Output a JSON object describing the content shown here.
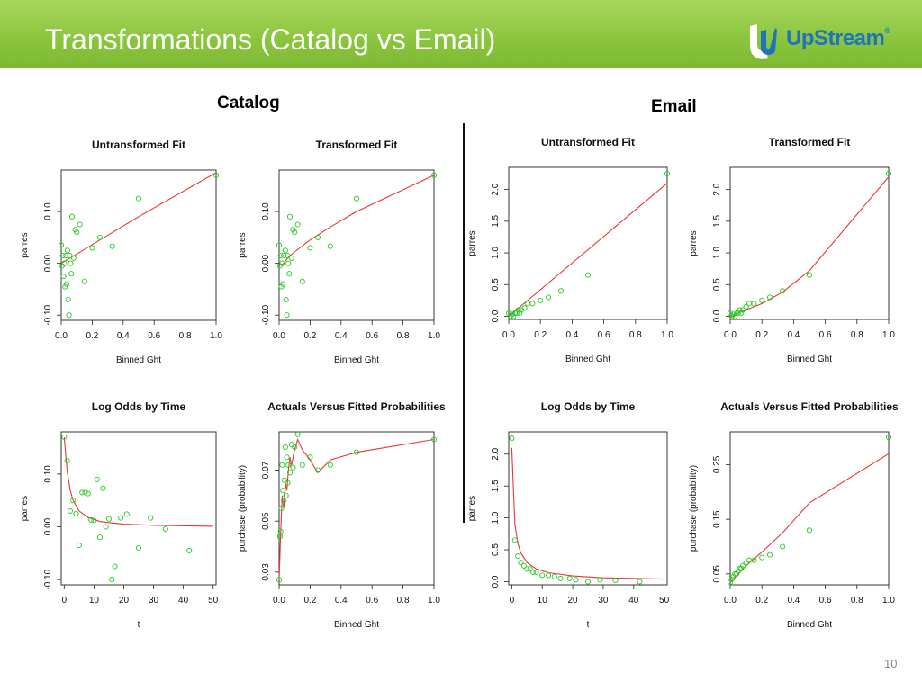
{
  "slide": {
    "title": "Transformations (Catalog vs Email)",
    "logo_text": "UpStream",
    "logo_tm": "®",
    "catalog_label": "Catalog",
    "email_label": "Email",
    "page_number": "10"
  },
  "colors": {
    "header": "#8cc63f",
    "points": "#22cc22",
    "fit": "#ee3333",
    "logo_blue": "#1e73be"
  },
  "chart_data": [
    {
      "group": "Catalog",
      "type": "scatter",
      "title": "Untransformed Fit",
      "xlabel": "Binned Ght",
      "ylabel": "parres",
      "xlim": [
        0,
        1
      ],
      "ylim": [
        -0.11,
        0.18
      ],
      "xticks": [
        "0.0",
        "0.2",
        "0.4",
        "0.6",
        "0.8",
        "1.0"
      ],
      "xtick_values": [
        0,
        0.2,
        0.4,
        0.6,
        0.8,
        1.0
      ],
      "yticks": [
        "-0.10",
        "0.00",
        "0.10"
      ],
      "ytick_values": [
        -0.1,
        0,
        0.1
      ],
      "points": [
        [
          0.0,
          0.035
        ],
        [
          0.005,
          -0.005
        ],
        [
          0.01,
          0.015
        ],
        [
          0.015,
          -0.025
        ],
        [
          0.02,
          0.0
        ],
        [
          0.025,
          -0.045
        ],
        [
          0.03,
          0.015
        ],
        [
          0.035,
          -0.04
        ],
        [
          0.04,
          0.025
        ],
        [
          0.045,
          -0.07
        ],
        [
          0.05,
          -0.1
        ],
        [
          0.055,
          0.015
        ],
        [
          0.06,
          0.0
        ],
        [
          0.065,
          -0.02
        ],
        [
          0.07,
          0.09
        ],
        [
          0.08,
          0.01
        ],
        [
          0.09,
          0.065
        ],
        [
          0.1,
          0.06
        ],
        [
          0.12,
          0.075
        ],
        [
          0.15,
          -0.035
        ],
        [
          0.2,
          0.03
        ],
        [
          0.25,
          0.05
        ],
        [
          0.33,
          0.033
        ],
        [
          0.5,
          0.125
        ],
        [
          1.0,
          0.17
        ]
      ],
      "fit": [
        [
          0.0,
          0.0
        ],
        [
          0.1,
          0.018
        ],
        [
          0.25,
          0.045
        ],
        [
          0.5,
          0.09
        ],
        [
          1.0,
          0.175
        ]
      ]
    },
    {
      "group": "Catalog",
      "type": "scatter",
      "title": "Transformed Fit",
      "xlabel": "Binned Ght",
      "ylabel": "parres",
      "xlim": [
        0,
        1
      ],
      "ylim": [
        -0.11,
        0.18
      ],
      "xticks": [
        "0.0",
        "0.2",
        "0.4",
        "0.6",
        "0.8",
        "1.0"
      ],
      "xtick_values": [
        0,
        0.2,
        0.4,
        0.6,
        0.8,
        1.0
      ],
      "yticks": [
        "-0.10",
        "0.00",
        "0.10"
      ],
      "ytick_values": [
        -0.1,
        0,
        0.1
      ],
      "points": [
        [
          0.0,
          0.035
        ],
        [
          0.005,
          -0.005
        ],
        [
          0.01,
          0.015
        ],
        [
          0.015,
          -0.045
        ],
        [
          0.02,
          0.0
        ],
        [
          0.025,
          -0.04
        ],
        [
          0.03,
          0.015
        ],
        [
          0.04,
          0.025
        ],
        [
          0.045,
          -0.07
        ],
        [
          0.05,
          -0.1
        ],
        [
          0.055,
          0.015
        ],
        [
          0.06,
          0.0
        ],
        [
          0.065,
          -0.02
        ],
        [
          0.07,
          0.09
        ],
        [
          0.08,
          0.01
        ],
        [
          0.09,
          0.065
        ],
        [
          0.1,
          0.06
        ],
        [
          0.12,
          0.075
        ],
        [
          0.15,
          -0.035
        ],
        [
          0.2,
          0.03
        ],
        [
          0.25,
          0.05
        ],
        [
          0.33,
          0.033
        ],
        [
          0.5,
          0.125
        ],
        [
          1.0,
          0.17
        ]
      ],
      "fit": [
        [
          0.0,
          -0.005
        ],
        [
          0.03,
          0.0
        ],
        [
          0.06,
          0.012
        ],
        [
          0.1,
          0.022
        ],
        [
          0.2,
          0.045
        ],
        [
          0.33,
          0.07
        ],
        [
          0.5,
          0.1
        ],
        [
          1.0,
          0.17
        ]
      ]
    },
    {
      "group": "Catalog",
      "type": "scatter",
      "title": "Log Odds by Time",
      "xlabel": "t",
      "ylabel": "parres",
      "xlim": [
        -1,
        51
      ],
      "ylim": [
        -0.11,
        0.18
      ],
      "xticks": [
        "0",
        "10",
        "20",
        "30",
        "40",
        "50"
      ],
      "xtick_values": [
        0,
        10,
        20,
        30,
        40,
        50
      ],
      "yticks": [
        "-0.10",
        "0.00",
        "0.10"
      ],
      "ytick_values": [
        -0.1,
        0,
        0.1
      ],
      "points": [
        [
          0,
          0.17
        ],
        [
          1,
          0.125
        ],
        [
          2,
          0.03
        ],
        [
          3,
          0.05
        ],
        [
          4,
          0.025
        ],
        [
          5,
          -0.035
        ],
        [
          6,
          0.065
        ],
        [
          7,
          0.065
        ],
        [
          8,
          0.063
        ],
        [
          9,
          0.013
        ],
        [
          10,
          0.012
        ],
        [
          11,
          0.09
        ],
        [
          12,
          -0.02
        ],
        [
          13,
          0.073
        ],
        [
          14,
          0.0
        ],
        [
          15,
          0.015
        ],
        [
          16,
          -0.1
        ],
        [
          17,
          -0.075
        ],
        [
          19,
          0.017
        ],
        [
          21,
          0.024
        ],
        [
          25,
          -0.04
        ],
        [
          29,
          0.017
        ],
        [
          34,
          -0.004
        ],
        [
          42,
          -0.045
        ]
      ],
      "fit": [
        [
          0,
          0.17
        ],
        [
          1,
          0.105
        ],
        [
          2,
          0.07
        ],
        [
          3,
          0.05
        ],
        [
          5,
          0.03
        ],
        [
          8,
          0.018
        ],
        [
          12,
          0.01
        ],
        [
          20,
          0.005
        ],
        [
          30,
          0.003
        ],
        [
          50,
          0.001
        ]
      ]
    },
    {
      "group": "Catalog",
      "type": "scatter",
      "title": "Actuals Versus Fitted Probabilities",
      "xlabel": "Binned Ght",
      "ylabel": "purchase (probability)",
      "xlim": [
        0,
        1
      ],
      "ylim": [
        0.025,
        0.085
      ],
      "xticks": [
        "0.0",
        "0.2",
        "0.4",
        "0.6",
        "0.8",
        "1.0"
      ],
      "xtick_values": [
        0,
        0.2,
        0.4,
        0.6,
        0.8,
        1.0
      ],
      "yticks": [
        "0.03",
        "0.05",
        "0.07"
      ],
      "ytick_values": [
        0.03,
        0.05,
        0.07
      ],
      "points": [
        [
          0.0,
          0.027
        ],
        [
          0.005,
          0.044
        ],
        [
          0.01,
          0.046
        ],
        [
          0.015,
          0.055
        ],
        [
          0.02,
          0.072
        ],
        [
          0.025,
          0.062
        ],
        [
          0.03,
          0.058
        ],
        [
          0.035,
          0.066
        ],
        [
          0.04,
          0.079
        ],
        [
          0.045,
          0.06
        ],
        [
          0.05,
          0.075
        ],
        [
          0.055,
          0.065
        ],
        [
          0.06,
          0.072
        ],
        [
          0.07,
          0.069
        ],
        [
          0.08,
          0.08
        ],
        [
          0.09,
          0.071
        ],
        [
          0.1,
          0.079
        ],
        [
          0.12,
          0.084
        ],
        [
          0.15,
          0.072
        ],
        [
          0.2,
          0.075
        ],
        [
          0.25,
          0.07
        ],
        [
          0.33,
          0.072
        ],
        [
          0.5,
          0.077
        ],
        [
          1.0,
          0.082
        ]
      ],
      "fit": [
        [
          0.0,
          0.027
        ],
        [
          0.01,
          0.045
        ],
        [
          0.02,
          0.06
        ],
        [
          0.03,
          0.055
        ],
        [
          0.04,
          0.065
        ],
        [
          0.05,
          0.062
        ],
        [
          0.06,
          0.07
        ],
        [
          0.07,
          0.075
        ],
        [
          0.08,
          0.072
        ],
        [
          0.1,
          0.078
        ],
        [
          0.12,
          0.082
        ],
        [
          0.15,
          0.078
        ],
        [
          0.2,
          0.074
        ],
        [
          0.25,
          0.069
        ],
        [
          0.33,
          0.074
        ],
        [
          0.5,
          0.077
        ],
        [
          1.0,
          0.082
        ]
      ]
    },
    {
      "group": "Email",
      "type": "scatter",
      "title": "Untransformed Fit",
      "xlabel": "Binned Ght",
      "ylabel": "parres",
      "xlim": [
        0,
        1
      ],
      "ylim": [
        -0.05,
        2.35
      ],
      "xticks": [
        "0.0",
        "0.2",
        "0.4",
        "0.6",
        "0.8",
        "1.0"
      ],
      "xtick_values": [
        0,
        0.2,
        0.4,
        0.6,
        0.8,
        1.0
      ],
      "yticks": [
        "0.0",
        "0.5",
        "1.0",
        "1.5",
        "2.0"
      ],
      "ytick_values": [
        0,
        0.5,
        1.0,
        1.5,
        2.0
      ],
      "points": [
        [
          0.0,
          0.05
        ],
        [
          0.01,
          0.0
        ],
        [
          0.02,
          0.03
        ],
        [
          0.03,
          0.0
        ],
        [
          0.04,
          0.05
        ],
        [
          0.05,
          0.05
        ],
        [
          0.06,
          0.1
        ],
        [
          0.07,
          0.05
        ],
        [
          0.08,
          0.1
        ],
        [
          0.1,
          0.13
        ],
        [
          0.12,
          0.2
        ],
        [
          0.15,
          0.2
        ],
        [
          0.2,
          0.25
        ],
        [
          0.25,
          0.3
        ],
        [
          0.33,
          0.4
        ],
        [
          0.5,
          0.65
        ],
        [
          1.0,
          2.25
        ]
      ],
      "fit": [
        [
          0.0,
          0.0
        ],
        [
          1.0,
          2.1
        ]
      ]
    },
    {
      "group": "Email",
      "type": "scatter",
      "title": "Transformed Fit",
      "xlabel": "Binned Ght",
      "ylabel": "parres",
      "xlim": [
        0,
        1
      ],
      "ylim": [
        -0.05,
        2.35
      ],
      "xticks": [
        "0.0",
        "0.2",
        "0.4",
        "0.6",
        "0.8",
        "1.0"
      ],
      "xtick_values": [
        0,
        0.2,
        0.4,
        0.6,
        0.8,
        1.0
      ],
      "yticks": [
        "0.0",
        "0.5",
        "1.0",
        "1.5",
        "2.0"
      ],
      "ytick_values": [
        0,
        0.5,
        1.0,
        1.5,
        2.0
      ],
      "points": [
        [
          0.0,
          0.05
        ],
        [
          0.01,
          0.0
        ],
        [
          0.02,
          0.03
        ],
        [
          0.03,
          0.0
        ],
        [
          0.04,
          0.05
        ],
        [
          0.05,
          0.05
        ],
        [
          0.06,
          0.1
        ],
        [
          0.07,
          0.05
        ],
        [
          0.08,
          0.1
        ],
        [
          0.1,
          0.15
        ],
        [
          0.12,
          0.2
        ],
        [
          0.15,
          0.2
        ],
        [
          0.2,
          0.25
        ],
        [
          0.25,
          0.3
        ],
        [
          0.33,
          0.4
        ],
        [
          0.5,
          0.65
        ],
        [
          1.0,
          2.25
        ]
      ],
      "fit": [
        [
          0.0,
          -0.02
        ],
        [
          0.05,
          0.05
        ],
        [
          0.1,
          0.1
        ],
        [
          0.2,
          0.2
        ],
        [
          0.33,
          0.38
        ],
        [
          0.5,
          0.72
        ],
        [
          1.0,
          2.2
        ]
      ]
    },
    {
      "group": "Email",
      "type": "scatter",
      "title": "Log Odds by Time",
      "xlabel": "t",
      "ylabel": "parres",
      "xlim": [
        -1,
        51
      ],
      "ylim": [
        -0.05,
        2.35
      ],
      "xticks": [
        "0",
        "10",
        "20",
        "30",
        "40",
        "50"
      ],
      "xtick_values": [
        0,
        10,
        20,
        30,
        40,
        50
      ],
      "yticks": [
        "0.0",
        "0.5",
        "1.0",
        "1.5",
        "2.0"
      ],
      "ytick_values": [
        0,
        0.5,
        1.0,
        1.5,
        2.0
      ],
      "points": [
        [
          0,
          2.25
        ],
        [
          1,
          0.65
        ],
        [
          2,
          0.4
        ],
        [
          3,
          0.3
        ],
        [
          4,
          0.25
        ],
        [
          5,
          0.2
        ],
        [
          6,
          0.2
        ],
        [
          7,
          0.15
        ],
        [
          8,
          0.15
        ],
        [
          10,
          0.1
        ],
        [
          12,
          0.1
        ],
        [
          14,
          0.08
        ],
        [
          16,
          0.05
        ],
        [
          19,
          0.05
        ],
        [
          21,
          0.03
        ],
        [
          25,
          0.0
        ],
        [
          29,
          0.03
        ],
        [
          34,
          0.02
        ],
        [
          42,
          0.0
        ]
      ],
      "fit": [
        [
          0,
          2.1
        ],
        [
          1,
          0.9
        ],
        [
          2,
          0.6
        ],
        [
          3,
          0.45
        ],
        [
          5,
          0.3
        ],
        [
          8,
          0.2
        ],
        [
          12,
          0.14
        ],
        [
          20,
          0.09
        ],
        [
          30,
          0.06
        ],
        [
          50,
          0.04
        ]
      ]
    },
    {
      "group": "Email",
      "type": "scatter",
      "title": "Actuals Versus Fitted Probabilities",
      "xlabel": "Binned Ght",
      "ylabel": "purchase (probability)",
      "xlim": [
        0,
        1
      ],
      "ylim": [
        0.03,
        0.31
      ],
      "xticks": [
        "0.0",
        "0.2",
        "0.4",
        "0.6",
        "0.8",
        "1.0"
      ],
      "xtick_values": [
        0,
        0.2,
        0.4,
        0.6,
        0.8,
        1.0
      ],
      "yticks": [
        "0.05",
        "0.15",
        "0.25"
      ],
      "ytick_values": [
        0.05,
        0.15,
        0.25
      ],
      "points": [
        [
          0.0,
          0.035
        ],
        [
          0.01,
          0.04
        ],
        [
          0.02,
          0.045
        ],
        [
          0.03,
          0.05
        ],
        [
          0.04,
          0.05
        ],
        [
          0.05,
          0.055
        ],
        [
          0.06,
          0.06
        ],
        [
          0.07,
          0.06
        ],
        [
          0.08,
          0.065
        ],
        [
          0.1,
          0.07
        ],
        [
          0.12,
          0.075
        ],
        [
          0.15,
          0.075
        ],
        [
          0.2,
          0.08
        ],
        [
          0.25,
          0.085
        ],
        [
          0.33,
          0.1
        ],
        [
          0.5,
          0.13
        ],
        [
          1.0,
          0.3
        ]
      ],
      "fit": [
        [
          0.0,
          0.035
        ],
        [
          0.05,
          0.05
        ],
        [
          0.1,
          0.065
        ],
        [
          0.2,
          0.09
        ],
        [
          0.33,
          0.125
        ],
        [
          0.5,
          0.18
        ],
        [
          1.0,
          0.27
        ]
      ]
    }
  ]
}
